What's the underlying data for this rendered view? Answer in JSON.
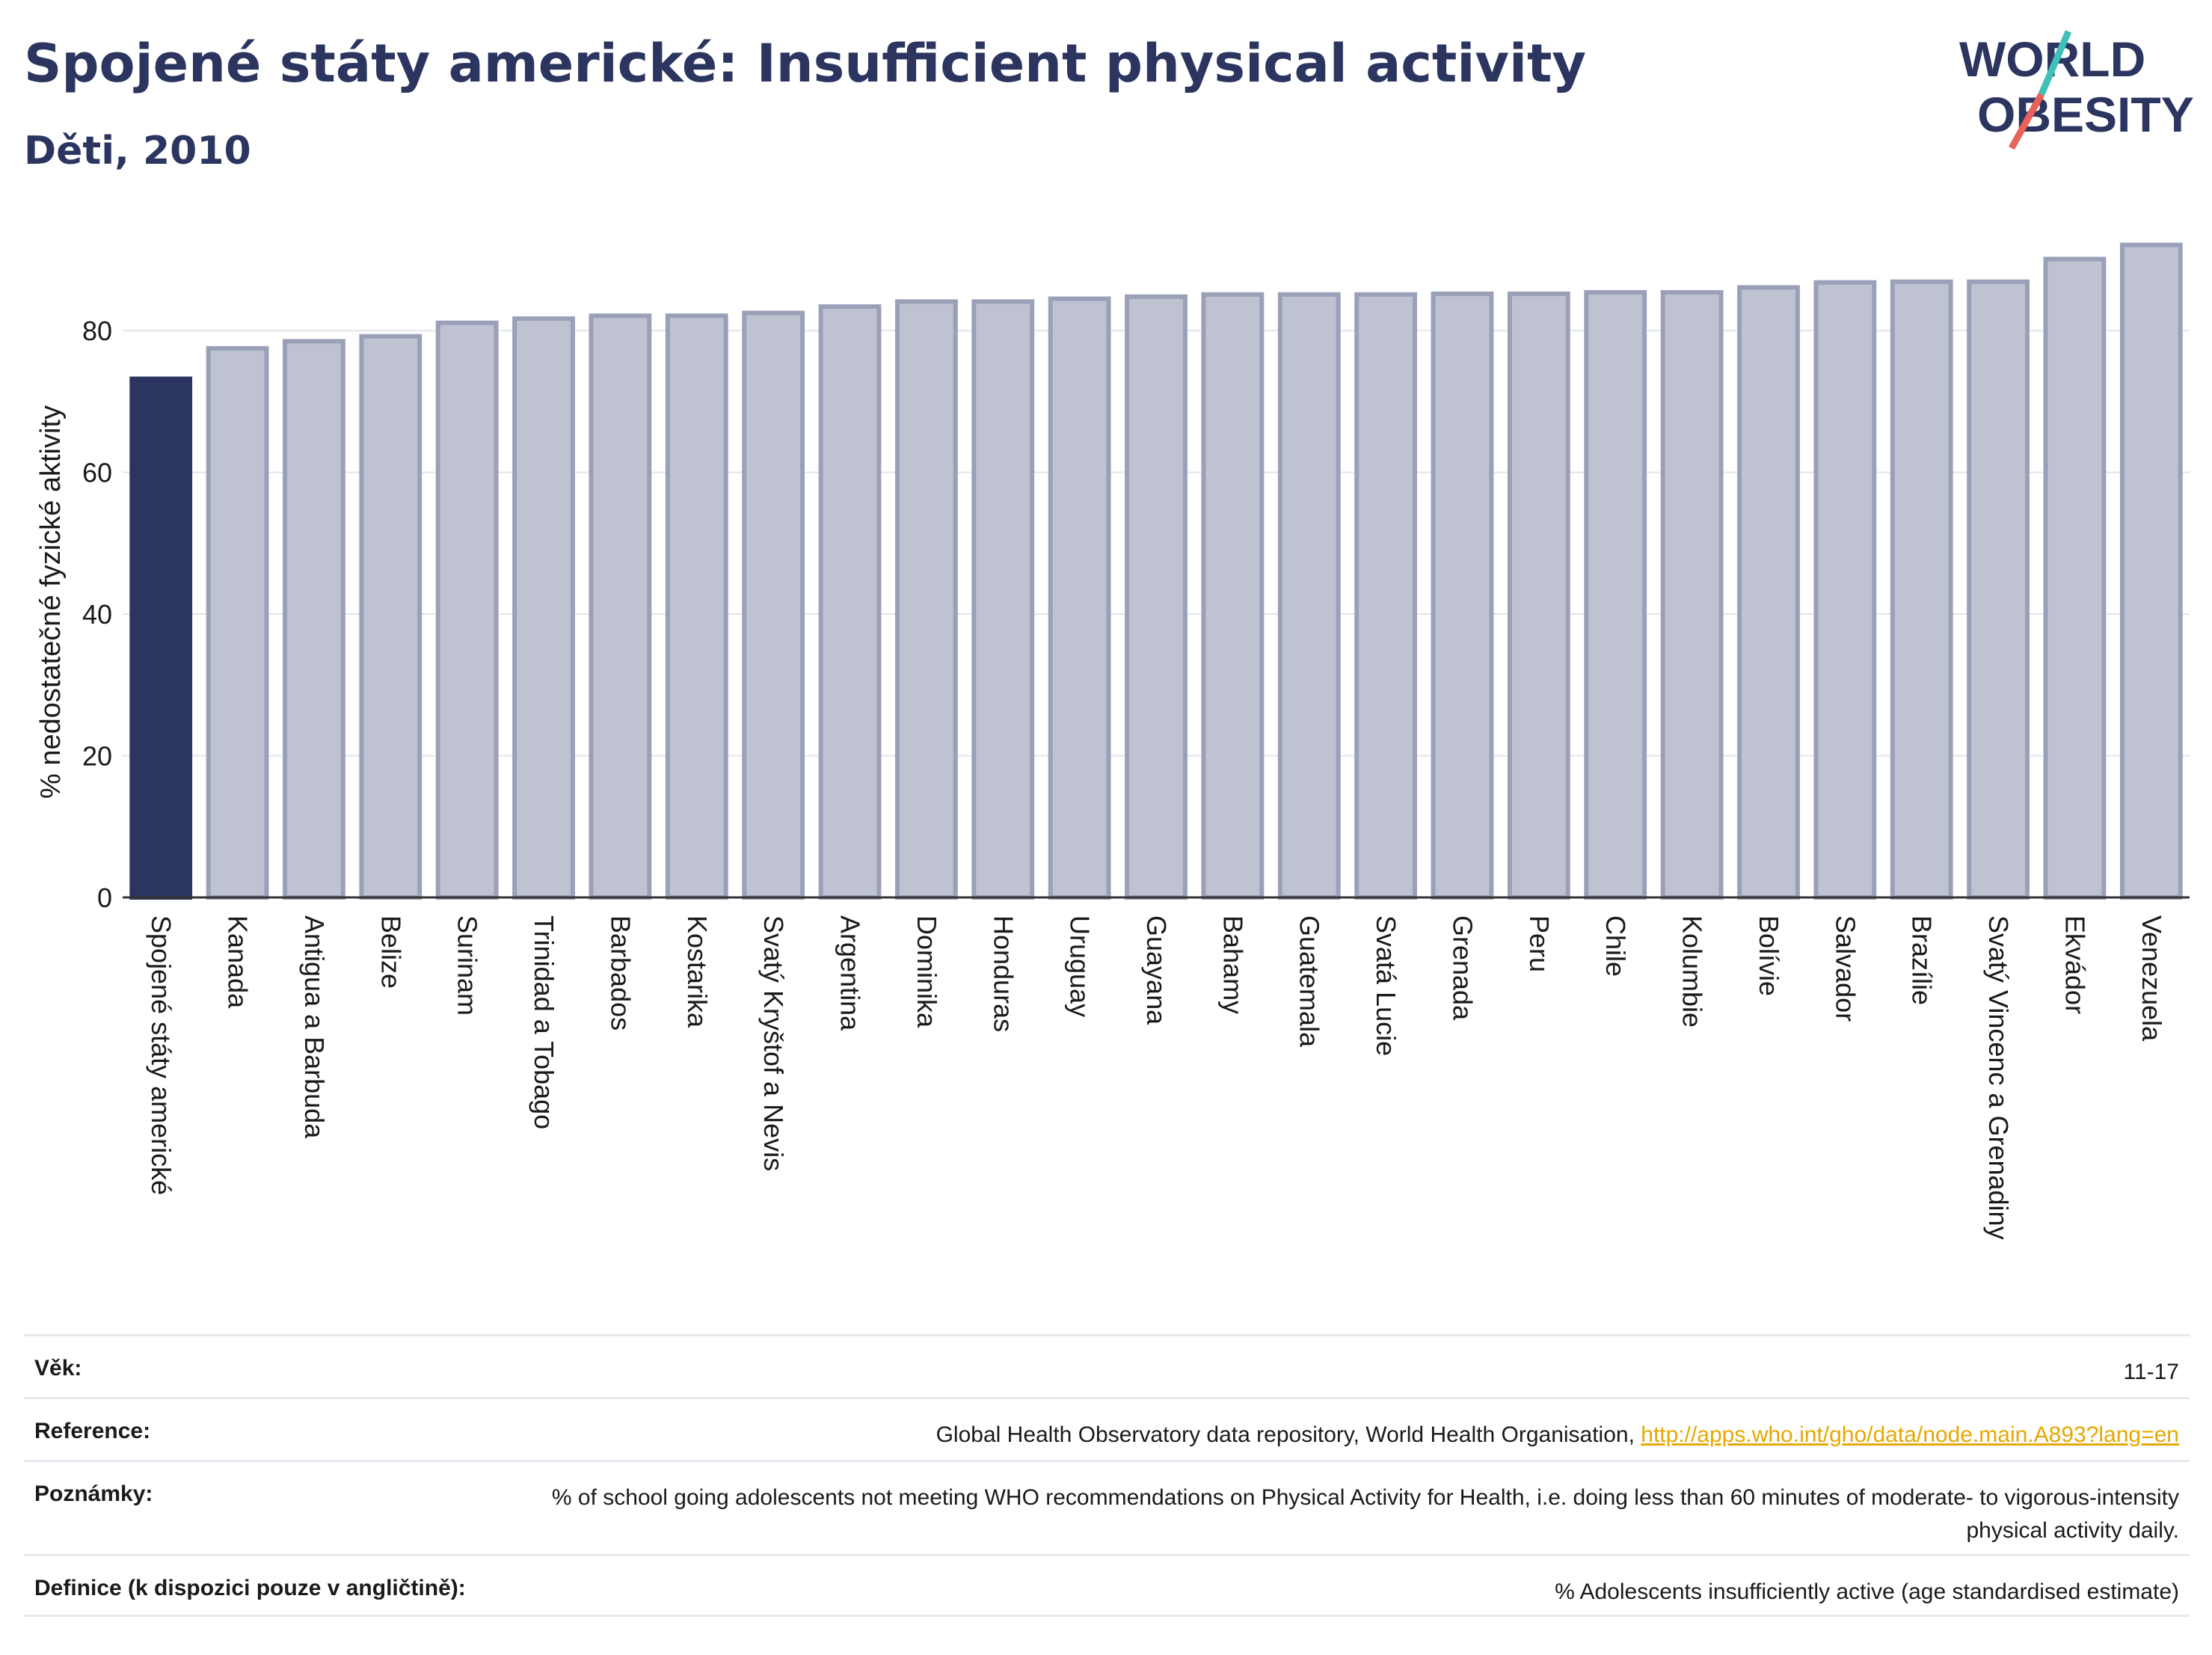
{
  "header": {
    "title": "Spojené státy americké: Insufficient physical activity",
    "subtitle": "Děti, 2010"
  },
  "logo": {
    "line1": "WORLD",
    "line2": "OBESITY",
    "accent_teal": "#3fc1b8",
    "accent_red": "#e8615a"
  },
  "chart_data": {
    "type": "bar",
    "categories": [
      "Spojené státy americké",
      "Kanada",
      "Antigua a Barbuda",
      "Belize",
      "Surinam",
      "Trinidad a Tobago",
      "Barbados",
      "Kostarika",
      "Svatý Kryštof a Nevis",
      "Argentina",
      "Dominika",
      "Honduras",
      "Uruguay",
      "Guayana",
      "Bahamy",
      "Guatemala",
      "Svatá Lucie",
      "Grenada",
      "Peru",
      "Chile",
      "Kolumbie",
      "Bolívie",
      "Salvador",
      "Brazílie",
      "Svatý Vincenc a Grenadiny",
      "Ekvádor",
      "Venezuela"
    ],
    "values": [
      73.2,
      77.5,
      78.5,
      79.2,
      81.1,
      81.7,
      82.1,
      82.1,
      82.5,
      83.4,
      84.1,
      84.1,
      84.5,
      84.8,
      85.1,
      85.1,
      85.1,
      85.2,
      85.2,
      85.4,
      85.4,
      86.1,
      86.8,
      86.9,
      86.9,
      90.1,
      92.1
    ],
    "ylabel": "% nedostatečné fyzické aktivity",
    "xlabel": "",
    "ylim": [
      0,
      95
    ],
    "yticks": [
      0,
      20,
      40,
      60,
      80
    ],
    "highlight_index": 0,
    "colors": {
      "highlight": "#2b3560",
      "bar": "#bfc3d1",
      "bar_border": "#9aa0b8",
      "grid": "#e3e5ec"
    },
    "grid": true
  },
  "info": {
    "age": {
      "label": "Věk:",
      "value": "11-17"
    },
    "reference": {
      "label": "Reference:",
      "text": "Global Health Observatory data repository, World Health Organisation, ",
      "link": "http://apps.who.int/gho/data/node.main.A893?lang=en"
    },
    "notes": {
      "label": "Poznámky:",
      "value": "% of school going adolescents not meeting WHO recommendations on Physical Activity for Health, i.e. doing less than 60 minutes of moderate- to vigorous-intensity physical activity daily."
    },
    "definition": {
      "label": "Definice (k dispozici pouze v angličtině):",
      "value": "% Adolescents insufficiently active (age standardised estimate)"
    }
  }
}
